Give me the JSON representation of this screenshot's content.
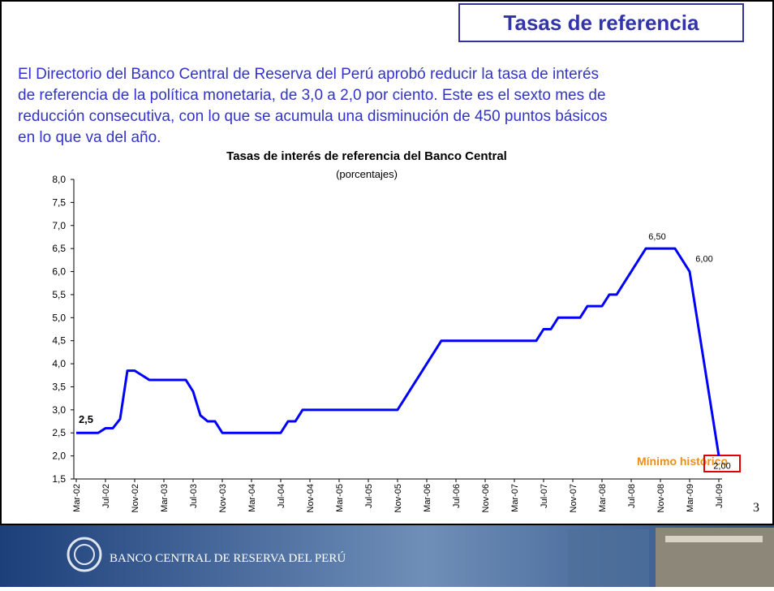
{
  "slide": {
    "title": "Tasas de referencia",
    "paragraph": [
      "El Directorio del Banco Central de Reserva del Perú aprobó reducir la tasa de interés",
      "de referencia de la política monetaria, de 3,0 a 2,0 por ciento. Este es el sexto mes de",
      "reducción consecutiva, con lo que se acumula una disminución de 450 puntos básicos",
      "en lo que va del año."
    ],
    "page_number": "3",
    "footer": "BANCO CENTRAL DE RESERVA DEL PERÚ"
  },
  "chart_data": {
    "type": "line",
    "title": "Tasas de interés de referencia del Banco Central",
    "subtitle": "(porcentajes)",
    "annotation": "Mínimo histórico",
    "color": "#0000ff",
    "categories": [
      "Mar-02",
      null,
      null,
      null,
      "Jul-02",
      null,
      null,
      null,
      "Nov-02",
      null,
      null,
      null,
      "Mar-03",
      null,
      null,
      null,
      "Jul-03",
      null,
      null,
      null,
      "Nov-03",
      null,
      null,
      null,
      "Mar-04",
      null,
      null,
      null,
      "Jul-04",
      null,
      null,
      null,
      "Nov-04",
      null,
      null,
      null,
      "Mar-05",
      null,
      null,
      null,
      "Jul-05",
      null,
      null,
      null,
      "Nov-05",
      null,
      null,
      null,
      "Mar-06",
      null,
      null,
      null,
      "Jul-06",
      null,
      null,
      null,
      "Nov-06",
      null,
      null,
      null,
      "Mar-07",
      null,
      null,
      null,
      "Jul-07",
      null,
      null,
      null,
      "Nov-07",
      null,
      null,
      null,
      "Mar-08",
      null,
      null,
      null,
      "Jul-08",
      null,
      null,
      null,
      "Nov-08",
      null,
      null,
      null,
      "Mar-09",
      null,
      null,
      null,
      "Jul-09"
    ],
    "values": [
      2.5,
      2.5,
      2.5,
      2.5,
      2.6,
      2.6,
      2.8,
      3.85,
      3.85,
      3.75,
      3.65,
      3.65,
      3.65,
      3.65,
      3.65,
      3.65,
      3.4,
      2.88,
      2.75,
      2.75,
      2.5,
      2.5,
      2.5,
      2.5,
      2.5,
      2.5,
      2.5,
      2.5,
      2.5,
      2.75,
      2.75,
      3.0,
      3.0,
      3.0,
      3.0,
      3.0,
      3.0,
      3.0,
      3.0,
      3.0,
      3.0,
      3.0,
      3.0,
      3.0,
      3.0,
      3.25,
      3.5,
      3.75,
      4.0,
      4.25,
      4.5,
      4.5,
      4.5,
      4.5,
      4.5,
      4.5,
      4.5,
      4.5,
      4.5,
      4.5,
      4.5,
      4.5,
      4.5,
      4.5,
      4.75,
      4.75,
      5.0,
      5.0,
      5.0,
      5.0,
      5.25,
      5.25,
      5.25,
      5.5,
      5.5,
      5.75,
      6.0,
      6.25,
      6.5,
      6.5,
      6.5,
      6.5,
      6.5,
      6.25,
      6.0,
      5.0,
      4.0,
      3.0,
      2.0
    ],
    "value_labels": [
      "2,5",
      null,
      null,
      null,
      null,
      null,
      null,
      null,
      null,
      null,
      null,
      null,
      null,
      null,
      null,
      null,
      null,
      null,
      null,
      null,
      null,
      null,
      null,
      null,
      null,
      null,
      null,
      null,
      null,
      null,
      null,
      null,
      null,
      null,
      null,
      null,
      null,
      null,
      null,
      null,
      null,
      null,
      null,
      null,
      null,
      null,
      null,
      null,
      null,
      null,
      null,
      null,
      null,
      null,
      null,
      null,
      null,
      null,
      null,
      null,
      null,
      null,
      null,
      null,
      null,
      null,
      null,
      null,
      null,
      null,
      null,
      null,
      null,
      null,
      null,
      null,
      null,
      null,
      "6,50",
      null,
      null,
      null,
      null,
      null,
      "6,00",
      null,
      null,
      null,
      "2,00"
    ],
    "ylim": [
      1.5,
      8.0
    ],
    "yticks": [
      {
        "value": 1.5,
        "label": "1,5"
      },
      {
        "value": 2.0,
        "label": "2,0"
      },
      {
        "value": 2.5,
        "label": "2,5"
      },
      {
        "value": 3.0,
        "label": "3,0"
      },
      {
        "value": 3.5,
        "label": "3,5"
      },
      {
        "value": 4.0,
        "label": "4,0"
      },
      {
        "value": 4.5,
        "label": "4,5"
      },
      {
        "value": 5.0,
        "label": "5,0"
      },
      {
        "value": 5.5,
        "label": "5,5"
      },
      {
        "value": 6.0,
        "label": "6,0"
      },
      {
        "value": 6.5,
        "label": "6,5"
      },
      {
        "value": 7.0,
        "label": "7,0"
      },
      {
        "value": 7.5,
        "label": "7,5"
      },
      {
        "value": 8.0,
        "label": "8,0"
      }
    ]
  }
}
